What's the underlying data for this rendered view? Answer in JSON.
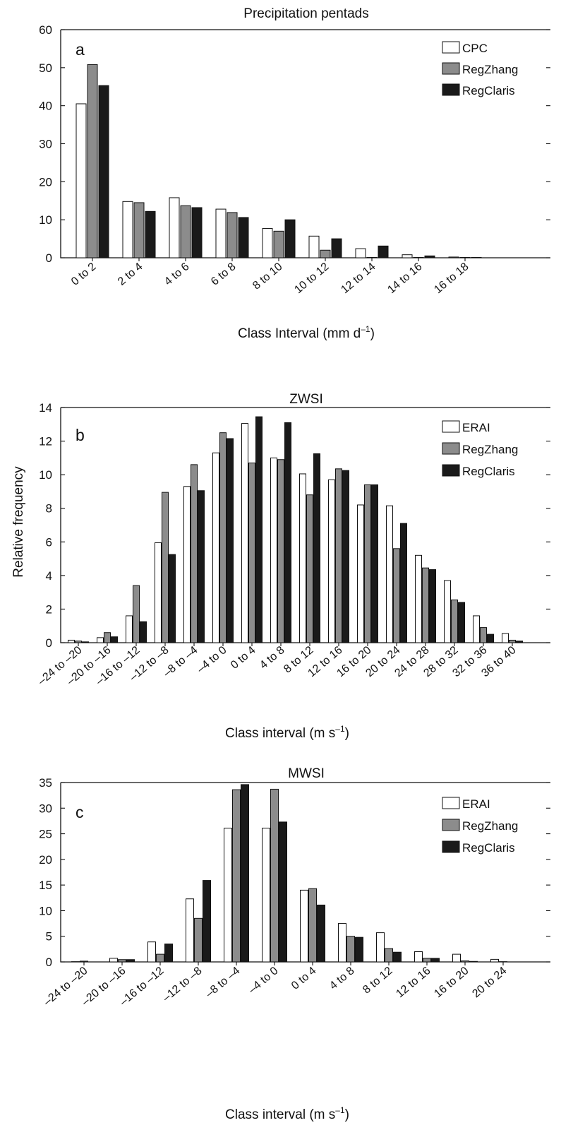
{
  "colors": {
    "series_1": "#ffffff",
    "series_2": "#8c8c8c",
    "series_3": "#1a1a1a",
    "stroke": "#111111"
  },
  "y_axis_label": "Relative frequency",
  "chart_data": [
    {
      "type": "bar",
      "panel_letter": "a",
      "title": "Precipitation pentads",
      "xlabel_main": "Class Interval (mm d",
      "xlabel_sup": "–1",
      "xlabel_end": ")",
      "ylabel": "",
      "ylim": [
        0,
        60
      ],
      "yticks": [
        0,
        10,
        20,
        30,
        40,
        50,
        60
      ],
      "grid": false,
      "legend_position": "top-right",
      "categories": [
        "0 to 2",
        "2 to 4",
        "4 to 6",
        "6 to 8",
        "8 to 10",
        "10 to 12",
        "12 to 14",
        "14 to 16",
        "16 to 18"
      ],
      "series": [
        {
          "name": "CPC",
          "values": [
            40.5,
            14.8,
            15.8,
            12.8,
            7.7,
            5.7,
            2.4,
            0.8,
            0.2
          ]
        },
        {
          "name": "RegZhang",
          "values": [
            50.8,
            14.5,
            13.7,
            11.9,
            7.0,
            2.0,
            0.1,
            0.1,
            0.1
          ]
        },
        {
          "name": "RegClaris",
          "values": [
            45.3,
            12.2,
            13.2,
            10.6,
            10.0,
            5.0,
            3.1,
            0.5,
            0.1
          ]
        }
      ]
    },
    {
      "type": "bar",
      "panel_letter": "b",
      "title": "ZWSI",
      "xlabel_main": "Class interval (m s",
      "xlabel_sup": "–1",
      "xlabel_end": ")",
      "ylabel": "Relative frequency",
      "ylim": [
        0,
        14
      ],
      "yticks": [
        0,
        2,
        4,
        6,
        8,
        10,
        12,
        14
      ],
      "grid": false,
      "legend_position": "top-right",
      "categories": [
        "–24 to –20",
        "–20 to –16",
        "–16 to –12",
        "–12 to –8",
        "–8 to –4",
        "–4 to 0",
        "0 to 4",
        "4 to 8",
        "8 to 12",
        "12 to 16",
        "16 to 20",
        "20 to 24",
        "24 to 28",
        "28 to 32",
        "32 to 36",
        "36 to 40"
      ],
      "series": [
        {
          "name": "ERAI",
          "values": [
            0.15,
            0.3,
            1.6,
            5.95,
            9.3,
            11.3,
            13.05,
            11.0,
            10.05,
            9.7,
            8.2,
            8.15,
            5.2,
            3.7,
            1.6,
            0.55
          ]
        },
        {
          "name": "RegZhang",
          "values": [
            0.1,
            0.6,
            3.4,
            8.95,
            10.6,
            12.5,
            10.7,
            10.9,
            8.8,
            10.35,
            9.4,
            5.6,
            4.45,
            2.55,
            0.9,
            0.15
          ]
        },
        {
          "name": "RegClaris",
          "values": [
            0.05,
            0.35,
            1.25,
            5.25,
            9.05,
            12.15,
            13.45,
            13.1,
            11.25,
            10.25,
            9.4,
            7.1,
            4.35,
            2.4,
            0.5,
            0.1
          ]
        }
      ]
    },
    {
      "type": "bar",
      "panel_letter": "c",
      "title": "MWSI",
      "xlabel_main": "Class interval (m s",
      "xlabel_sup": "–1",
      "xlabel_end": ")",
      "ylabel": "",
      "ylim": [
        0,
        35
      ],
      "yticks": [
        0,
        5,
        10,
        15,
        20,
        25,
        30,
        35
      ],
      "grid": false,
      "legend_position": "top-right",
      "categories": [
        "–24 to –20",
        "–20 to –16",
        "–16 to –12",
        "–12 to –8",
        "–8 to –4",
        "–4 to 0",
        "0 to 4",
        "4 to 8",
        "8 to 12",
        "12 to 16",
        "16 to 20",
        "20 to 24"
      ],
      "series": [
        {
          "name": "ERAI",
          "values": [
            0.05,
            0.7,
            3.9,
            12.3,
            26.1,
            26.1,
            14.0,
            7.5,
            5.7,
            2.0,
            1.5,
            0.5
          ]
        },
        {
          "name": "RegZhang",
          "values": [
            0.15,
            0.45,
            1.5,
            8.5,
            33.6,
            33.7,
            14.3,
            5.0,
            2.6,
            0.7,
            0.2,
            0.05
          ]
        },
        {
          "name": "RegClaris",
          "values": [
            0.0,
            0.45,
            3.5,
            15.9,
            34.6,
            27.3,
            11.1,
            4.8,
            1.9,
            0.7,
            0.1,
            0.0
          ]
        }
      ]
    }
  ]
}
